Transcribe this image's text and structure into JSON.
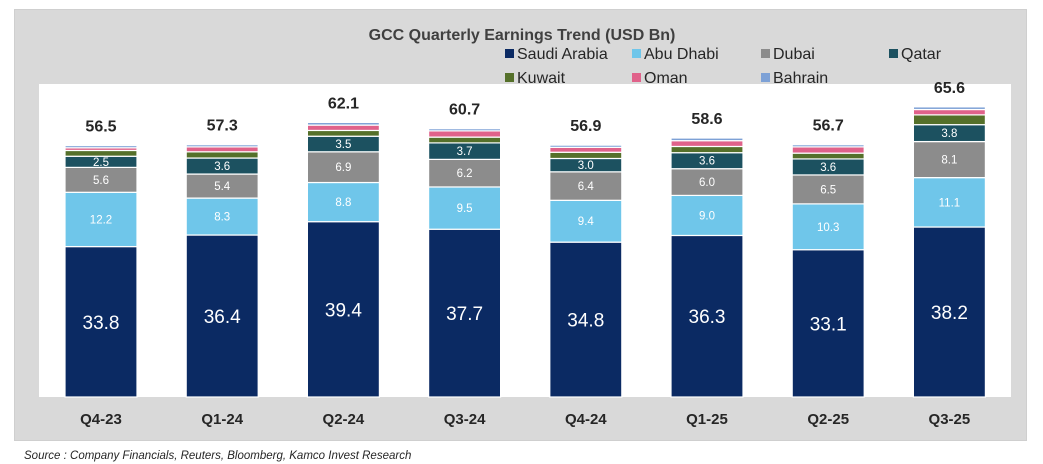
{
  "chart_data": {
    "type": "stacked-bar",
    "title": "GCC Quarterly Earnings Trend (USD Bn)",
    "categories": [
      "Q4-23",
      "Q1-24",
      "Q2-24",
      "Q3-24",
      "Q4-24",
      "Q1-25",
      "Q2-25",
      "Q3-25"
    ],
    "totals": [
      56.5,
      57.3,
      62.1,
      60.7,
      56.9,
      58.6,
      56.7,
      65.6
    ],
    "series": [
      {
        "name": "Saudi Arabia",
        "color": "#0b2a63",
        "label_color": "#ffffff",
        "values": [
          33.8,
          36.4,
          39.4,
          37.7,
          34.8,
          36.3,
          33.1,
          38.2
        ]
      },
      {
        "name": "Abu Dhabi",
        "color": "#6fc6ea",
        "label_color": "#ffffff",
        "values": [
          12.2,
          8.3,
          8.8,
          9.5,
          9.4,
          9.0,
          10.3,
          11.1
        ]
      },
      {
        "name": "Dubai",
        "color": "#8c8c8c",
        "label_color": "#ffffff",
        "values": [
          5.6,
          5.4,
          6.9,
          6.2,
          6.4,
          6.0,
          6.5,
          8.1
        ]
      },
      {
        "name": "Qatar",
        "color": "#1c5160",
        "label_color": "#ffffff",
        "values": [
          2.5,
          3.6,
          3.5,
          3.7,
          3.0,
          3.6,
          3.6,
          3.8
        ]
      },
      {
        "name": "Kuwait",
        "color": "#55702a",
        "values": [
          1.3,
          1.4,
          1.3,
          1.3,
          1.4,
          1.4,
          1.3,
          2.2
        ]
      },
      {
        "name": "Oman",
        "color": "#e0628a",
        "values": [
          0.6,
          1.1,
          1.2,
          1.4,
          1.1,
          1.3,
          1.4,
          1.2
        ]
      },
      {
        "name": "Bahrain",
        "color": "#7da1d6",
        "values": [
          0.5,
          0.5,
          0.6,
          0.5,
          0.5,
          0.6,
          0.5,
          0.6
        ]
      }
    ],
    "ylim": [
      0,
      70
    ],
    "legend_position": "top",
    "grid": false
  },
  "source_note": "Source : Company Financials, Reuters, Bloomberg, Kamco Invest Research"
}
